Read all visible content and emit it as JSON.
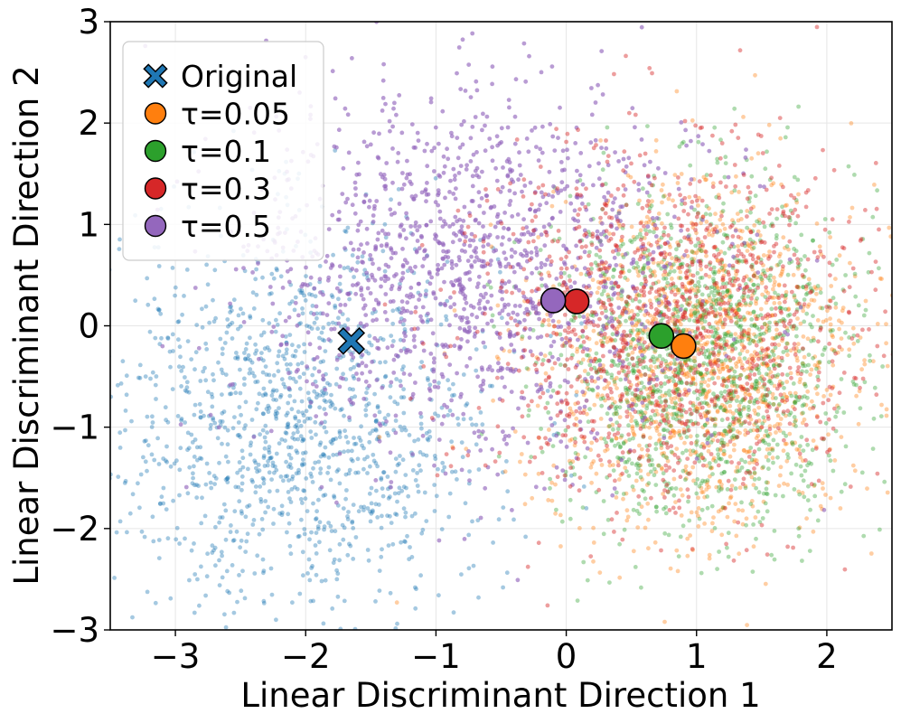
{
  "chart_data": {
    "type": "scatter",
    "title": "",
    "xlabel": "Linear Discriminant Direction 1",
    "ylabel": "Linear Discriminant Direction 2",
    "xlim": [
      -3.5,
      2.5
    ],
    "ylim": [
      -3,
      3
    ],
    "xticks": [
      -3,
      -2,
      -1,
      0,
      1,
      2
    ],
    "yticks": [
      -3,
      -2,
      -1,
      0,
      1,
      2,
      3
    ],
    "xtick_labels": [
      "−3",
      "−2",
      "−1",
      "0",
      "1",
      "2"
    ],
    "ytick_labels": [
      "−3",
      "−2",
      "−1",
      "0",
      "1",
      "2",
      "3"
    ],
    "grid": true,
    "legend_position": "top-left",
    "series": [
      {
        "name": "Original",
        "color": "#1f77b4",
        "marker": "X",
        "centroid": [
          -1.65,
          -0.15
        ],
        "cloud": {
          "cx": -2.05,
          "cy": -0.95,
          "sx": 0.75,
          "sy": 0.95,
          "n": 1300
        }
      },
      {
        "name": "τ=0.05",
        "color": "#ff7f0e",
        "marker": "o",
        "centroid": [
          0.9,
          -0.2
        ],
        "cloud": {
          "cx": 1.05,
          "cy": -0.35,
          "sx": 0.6,
          "sy": 0.85,
          "n": 1400
        }
      },
      {
        "name": "τ=0.1",
        "color": "#2ca02c",
        "marker": "o",
        "centroid": [
          0.73,
          -0.1
        ],
        "cloud": {
          "cx": 1.05,
          "cy": -0.3,
          "sx": 0.58,
          "sy": 0.82,
          "n": 1400
        }
      },
      {
        "name": "τ=0.3",
        "color": "#d62728",
        "marker": "o",
        "centroid": [
          0.08,
          0.24
        ],
        "cloud": {
          "cx": 0.8,
          "cy": -0.05,
          "sx": 0.75,
          "sy": 0.85,
          "n": 1200
        }
      },
      {
        "name": "τ=0.5",
        "color": "#9467bd",
        "marker": "o",
        "centroid": [
          -0.1,
          0.25
        ],
        "cloud": {
          "cx": -0.7,
          "cy": 0.55,
          "sx": 0.85,
          "sy": 0.9,
          "n": 1400
        }
      }
    ]
  }
}
